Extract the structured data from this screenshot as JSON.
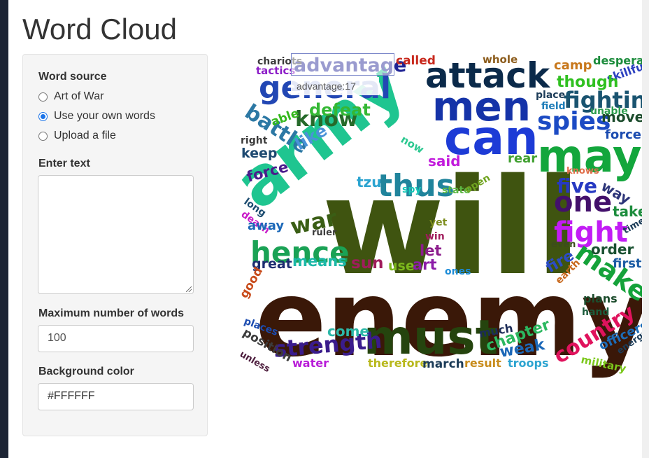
{
  "page": {
    "title": "Word Cloud"
  },
  "sidebar": {
    "source_label": "Word source",
    "options": [
      {
        "label": "Art of War",
        "checked": false
      },
      {
        "label": "Use your own words",
        "checked": true
      },
      {
        "label": "Upload a file",
        "checked": false
      }
    ],
    "text_label": "Enter text",
    "text_value": "",
    "max_label": "Maximum number of words",
    "max_value": "100",
    "bg_label": "Background color",
    "bg_value": "#FFFFFF"
  },
  "cloud": {
    "tooltip": "advantage:17",
    "words": [
      {
        "t": "will",
        "c": "#3f5410"
      },
      {
        "t": "enemy",
        "c": "#3a1808"
      },
      {
        "t": "army",
        "c": "#1fc590"
      },
      {
        "t": "must",
        "c": "#25440e"
      },
      {
        "t": "may",
        "c": "#13a63c"
      },
      {
        "t": "can",
        "c": "#1d3bd6"
      },
      {
        "t": "men",
        "c": "#1533a8"
      },
      {
        "t": "attack",
        "c": "#0b2a4a"
      },
      {
        "t": "general",
        "c": "#2247b4"
      },
      {
        "t": "advantage",
        "c": "#1f2394"
      },
      {
        "t": "thus",
        "c": "#20849c"
      },
      {
        "t": "hence",
        "c": "#1aa255"
      },
      {
        "t": "fight",
        "c": "#c21cf5"
      },
      {
        "t": "one",
        "c": "#43106b"
      },
      {
        "t": "five",
        "c": "#2639c2"
      },
      {
        "t": "make",
        "c": "#15a23a"
      },
      {
        "t": "country",
        "c": "#e0135d"
      },
      {
        "t": "strength",
        "c": "#3a1c8c"
      },
      {
        "t": "spies",
        "c": "#1c4bc4"
      },
      {
        "t": "fighting",
        "c": "#1a5470"
      },
      {
        "t": "battle",
        "c": "#2c78a4"
      },
      {
        "t": "know",
        "c": "#266a2a"
      },
      {
        "t": "war",
        "c": "#3a5e15"
      },
      {
        "t": "defeat",
        "c": "#34b834"
      },
      {
        "t": "like",
        "c": "#4a92d8"
      },
      {
        "t": "force",
        "c": "#4a1c8c"
      },
      {
        "t": "keep",
        "c": "#1c4870"
      },
      {
        "t": "right",
        "c": "#3c3c3c"
      },
      {
        "t": "able",
        "c": "#34b81c"
      },
      {
        "t": "now",
        "c": "#2cc890"
      },
      {
        "t": "said",
        "c": "#c21cdc"
      },
      {
        "t": "tzu",
        "c": "#2ca4d0"
      },
      {
        "t": "spy",
        "c": "#18c8b8"
      },
      {
        "t": "state",
        "c": "#5cb844"
      },
      {
        "t": "open",
        "c": "#70a420"
      },
      {
        "t": "rear",
        "c": "#40a030"
      },
      {
        "t": "way",
        "c": "#2c3478"
      },
      {
        "t": "take",
        "c": "#1c8c3c"
      },
      {
        "t": "order",
        "c": "#185030"
      },
      {
        "t": "first",
        "c": "#1c5ca4"
      },
      {
        "t": "fire",
        "c": "#2c4cc4"
      },
      {
        "t": "earth",
        "c": "#c8681c"
      },
      {
        "t": "even",
        "c": "#3c4c1c"
      },
      {
        "t": "time",
        "c": "#1c3c58"
      },
      {
        "t": "knows",
        "c": "#e0704c"
      },
      {
        "t": "move",
        "c": "#1c4c2c"
      },
      {
        "t": "forces",
        "c": "#1c4cb0"
      },
      {
        "t": "unable",
        "c": "#2c9c4c"
      },
      {
        "t": "field",
        "c": "#1c7cb8"
      },
      {
        "t": "place",
        "c": "#1c3c58"
      },
      {
        "t": "skillful",
        "c": "#2c40c0"
      },
      {
        "t": "though",
        "c": "#30c020"
      },
      {
        "t": "camp",
        "c": "#c8781c"
      },
      {
        "t": "desperate",
        "c": "#1c8c3c"
      },
      {
        "t": "whole",
        "c": "#8c5c1c"
      },
      {
        "t": "called",
        "c": "#c8281c"
      },
      {
        "t": "chariots",
        "c": "#3c3c3c"
      },
      {
        "t": "tactics",
        "c": "#8c1cc8"
      },
      {
        "t": "long",
        "c": "#1c4c70"
      },
      {
        "t": "death",
        "c": "#c81cc8"
      },
      {
        "t": "away",
        "c": "#1c68b8"
      },
      {
        "t": "great",
        "c": "#1c2c70"
      },
      {
        "t": "means",
        "c": "#1cb8a8"
      },
      {
        "t": "sun",
        "c": "#a01c5c"
      },
      {
        "t": "use",
        "c": "#7cb81c"
      },
      {
        "t": "art",
        "c": "#8c1ca8"
      },
      {
        "t": "let",
        "c": "#8c1c8c"
      },
      {
        "t": "win",
        "c": "#a01c5c"
      },
      {
        "t": "yet",
        "c": "#7c8c1c"
      },
      {
        "t": "ruler",
        "c": "#3c3c3c"
      },
      {
        "t": "ones",
        "c": "#1c8cd8"
      },
      {
        "t": "good",
        "c": "#c84c1c"
      },
      {
        "t": "places",
        "c": "#1c4cb0"
      },
      {
        "t": "position",
        "c": "#3c3c3c"
      },
      {
        "t": "unless",
        "c": "#4c1c3c"
      },
      {
        "t": "water",
        "c": "#b81cd8"
      },
      {
        "t": "come",
        "c": "#2cb8a8"
      },
      {
        "t": "therefore",
        "c": "#b8b81c"
      },
      {
        "t": "march",
        "c": "#1c3c58"
      },
      {
        "t": "result",
        "c": "#c88c1c"
      },
      {
        "t": "much",
        "c": "#1c2c58"
      },
      {
        "t": "chapter",
        "c": "#2cb860"
      },
      {
        "t": "weak",
        "c": "#1c68b8"
      },
      {
        "t": "troops",
        "c": "#2ca4d0"
      },
      {
        "t": "plans",
        "c": "#1c4c2c"
      },
      {
        "t": "hand",
        "c": "#1c5c3c"
      },
      {
        "t": "officers",
        "c": "#1c6cb8"
      },
      {
        "t": "energy",
        "c": "#1c3c58"
      },
      {
        "t": "military",
        "c": "#7cc81c"
      }
    ]
  }
}
